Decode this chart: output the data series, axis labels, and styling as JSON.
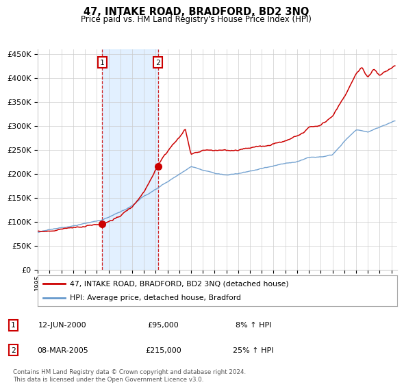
{
  "title": "47, INTAKE ROAD, BRADFORD, BD2 3NQ",
  "subtitle": "Price paid vs. HM Land Registry's House Price Index (HPI)",
  "legend_line1": "47, INTAKE ROAD, BRADFORD, BD2 3NQ (detached house)",
  "legend_line2": "HPI: Average price, detached house, Bradford",
  "annotation1_label": "1",
  "annotation1_date": "12-JUN-2000",
  "annotation1_price": "£95,000",
  "annotation1_hpi": "8% ↑ HPI",
  "annotation1_year": 2000.45,
  "annotation1_value": 95000,
  "annotation2_label": "2",
  "annotation2_date": "08-MAR-2005",
  "annotation2_price": "£215,000",
  "annotation2_hpi": "25% ↑ HPI",
  "annotation2_year": 2005.19,
  "annotation2_value": 215000,
  "ylim": [
    0,
    460000
  ],
  "xlim_start": 1995,
  "xlim_end": 2025.5,
  "hpi_line_color": "#6699cc",
  "price_line_color": "#cc0000",
  "footer": "Contains HM Land Registry data © Crown copyright and database right 2024.\nThis data is licensed under the Open Government Licence v3.0.",
  "background_color": "#ffffff",
  "grid_color": "#cccccc",
  "shade_color": "#ddeeff"
}
